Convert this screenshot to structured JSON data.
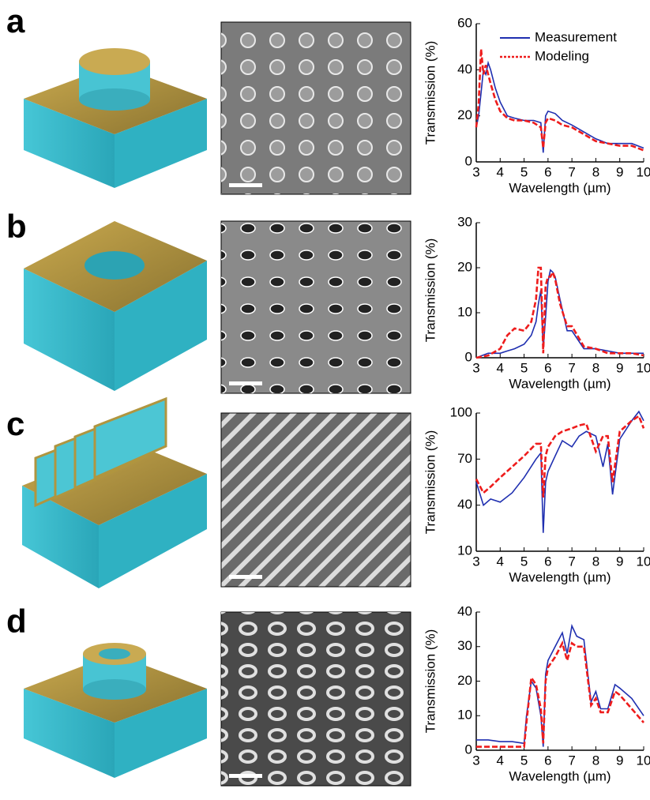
{
  "chart_data": [
    {
      "type": "line",
      "panel": "a",
      "xlabel": "Wavelength  (µm)",
      "ylabel": "Transmission  (%)",
      "legend": "upper right",
      "xlim": [
        3,
        10
      ],
      "xticks": [
        3,
        4,
        5,
        6,
        7,
        8,
        9,
        10
      ],
      "ylim": [
        0,
        60
      ],
      "yticks": [
        0,
        20,
        40,
        60
      ],
      "x": [
        3,
        3.1,
        3.2,
        3.3,
        3.4,
        3.5,
        3.6,
        3.8,
        4,
        4.3,
        4.6,
        5,
        5.4,
        5.7,
        5.8,
        5.9,
        6,
        6.3,
        6.6,
        7,
        7.5,
        8,
        8.5,
        9,
        9.5,
        10
      ],
      "series": [
        {
          "name": "Measurement",
          "color": "#1f2fb0",
          "style": "solid",
          "values": [
            15,
            20,
            30,
            40,
            38,
            43,
            40,
            32,
            26,
            20,
            19,
            18,
            18,
            17,
            4,
            20,
            22,
            21,
            18,
            16,
            13,
            10,
            8,
            8,
            8,
            6
          ]
        },
        {
          "name": "Modeling",
          "color": "#ee1c1c",
          "style": "dashed",
          "values": [
            15,
            25,
            49,
            38,
            42,
            38,
            34,
            27,
            22,
            19,
            18,
            18,
            17,
            15,
            6,
            17,
            19,
            18,
            16,
            15,
            12,
            9,
            8,
            7,
            7,
            5
          ]
        }
      ]
    },
    {
      "type": "line",
      "panel": "b",
      "xlabel": "Wavelength  (µm)",
      "ylabel": "Transmission  (%)",
      "xlim": [
        3,
        10
      ],
      "xticks": [
        3,
        4,
        5,
        6,
        7,
        8,
        9,
        10
      ],
      "ylim": [
        0,
        30
      ],
      "yticks": [
        0,
        10,
        20,
        30
      ],
      "x": [
        3,
        3.5,
        4,
        4.3,
        4.6,
        5,
        5.3,
        5.5,
        5.6,
        5.7,
        5.8,
        5.9,
        6,
        6.1,
        6.2,
        6.3,
        6.5,
        6.8,
        7,
        7.5,
        8,
        8.5,
        9,
        9.5,
        10
      ],
      "series": [
        {
          "color": "#1f2fb0",
          "style": "solid",
          "values": [
            0,
            1,
            1,
            1.5,
            2,
            3,
            5,
            8,
            12,
            15,
            2,
            9,
            17,
            19.5,
            19,
            18,
            13,
            6,
            6,
            2,
            2,
            1.5,
            1,
            1,
            1
          ]
        },
        {
          "color": "#ee1c1c",
          "style": "dashed",
          "values": [
            0,
            0.5,
            2,
            5,
            6.5,
            6,
            8,
            13,
            20,
            20,
            1,
            16,
            18,
            18,
            19,
            17.5,
            12,
            7,
            7,
            2.5,
            2,
            1,
            1,
            1,
            0.5
          ]
        }
      ]
    },
    {
      "type": "line",
      "panel": "c",
      "xlabel": "Wavelength  (µm)",
      "ylabel": "Transmission  (%)",
      "xlim": [
        3,
        10
      ],
      "xticks": [
        3,
        4,
        5,
        6,
        7,
        8,
        9,
        10
      ],
      "ylim": [
        10,
        100
      ],
      "yticks": [
        10,
        40,
        70,
        100
      ],
      "x": [
        3,
        3.3,
        3.6,
        4,
        4.5,
        5,
        5.5,
        5.7,
        5.8,
        5.9,
        6,
        6.3,
        6.6,
        7,
        7.3,
        7.6,
        8,
        8.3,
        8.5,
        8.7,
        9,
        9.5,
        9.8,
        10
      ],
      "series": [
        {
          "color": "#1f2fb0",
          "style": "solid",
          "values": [
            55,
            40,
            44,
            42,
            48,
            58,
            70,
            74,
            22,
            55,
            62,
            72,
            82,
            78,
            85,
            88,
            85,
            65,
            80,
            47,
            83,
            95,
            101,
            95
          ]
        },
        {
          "color": "#ee1c1c",
          "style": "dashed",
          "values": [
            57,
            48,
            52,
            58,
            65,
            72,
            80,
            80,
            45,
            72,
            78,
            85,
            88,
            90,
            92,
            93,
            75,
            85,
            85,
            55,
            88,
            95,
            98,
            90
          ]
        }
      ]
    },
    {
      "type": "line",
      "panel": "d",
      "xlabel": "Wavelength  (µm)",
      "ylabel": "Transmission  (%)",
      "xlim": [
        3,
        10
      ],
      "xticks": [
        3,
        4,
        5,
        6,
        7,
        8,
        9,
        10
      ],
      "ylim": [
        0,
        40
      ],
      "yticks": [
        0,
        10,
        20,
        30,
        40
      ],
      "x": [
        3,
        3.5,
        4,
        4.5,
        5,
        5.1,
        5.3,
        5.5,
        5.7,
        5.8,
        5.9,
        6,
        6.3,
        6.6,
        6.8,
        7,
        7.2,
        7.5,
        7.8,
        8,
        8.2,
        8.5,
        8.8,
        9,
        9.5,
        10
      ],
      "series": [
        {
          "color": "#1f2fb0",
          "style": "solid",
          "values": [
            3,
            3,
            2.5,
            2.5,
            2,
            10,
            20,
            18,
            10,
            1,
            22,
            26,
            30,
            34,
            28,
            36,
            33,
            32,
            14,
            17,
            12,
            12,
            19,
            18,
            15,
            10
          ]
        },
        {
          "color": "#ee1c1c",
          "style": "dashed",
          "values": [
            1,
            1,
            1,
            1,
            1,
            8,
            21,
            19,
            12,
            2,
            20,
            24,
            27,
            31,
            26,
            31,
            30,
            30,
            13,
            15,
            11,
            11,
            17,
            16,
            12,
            8
          ]
        }
      ]
    }
  ]
}
